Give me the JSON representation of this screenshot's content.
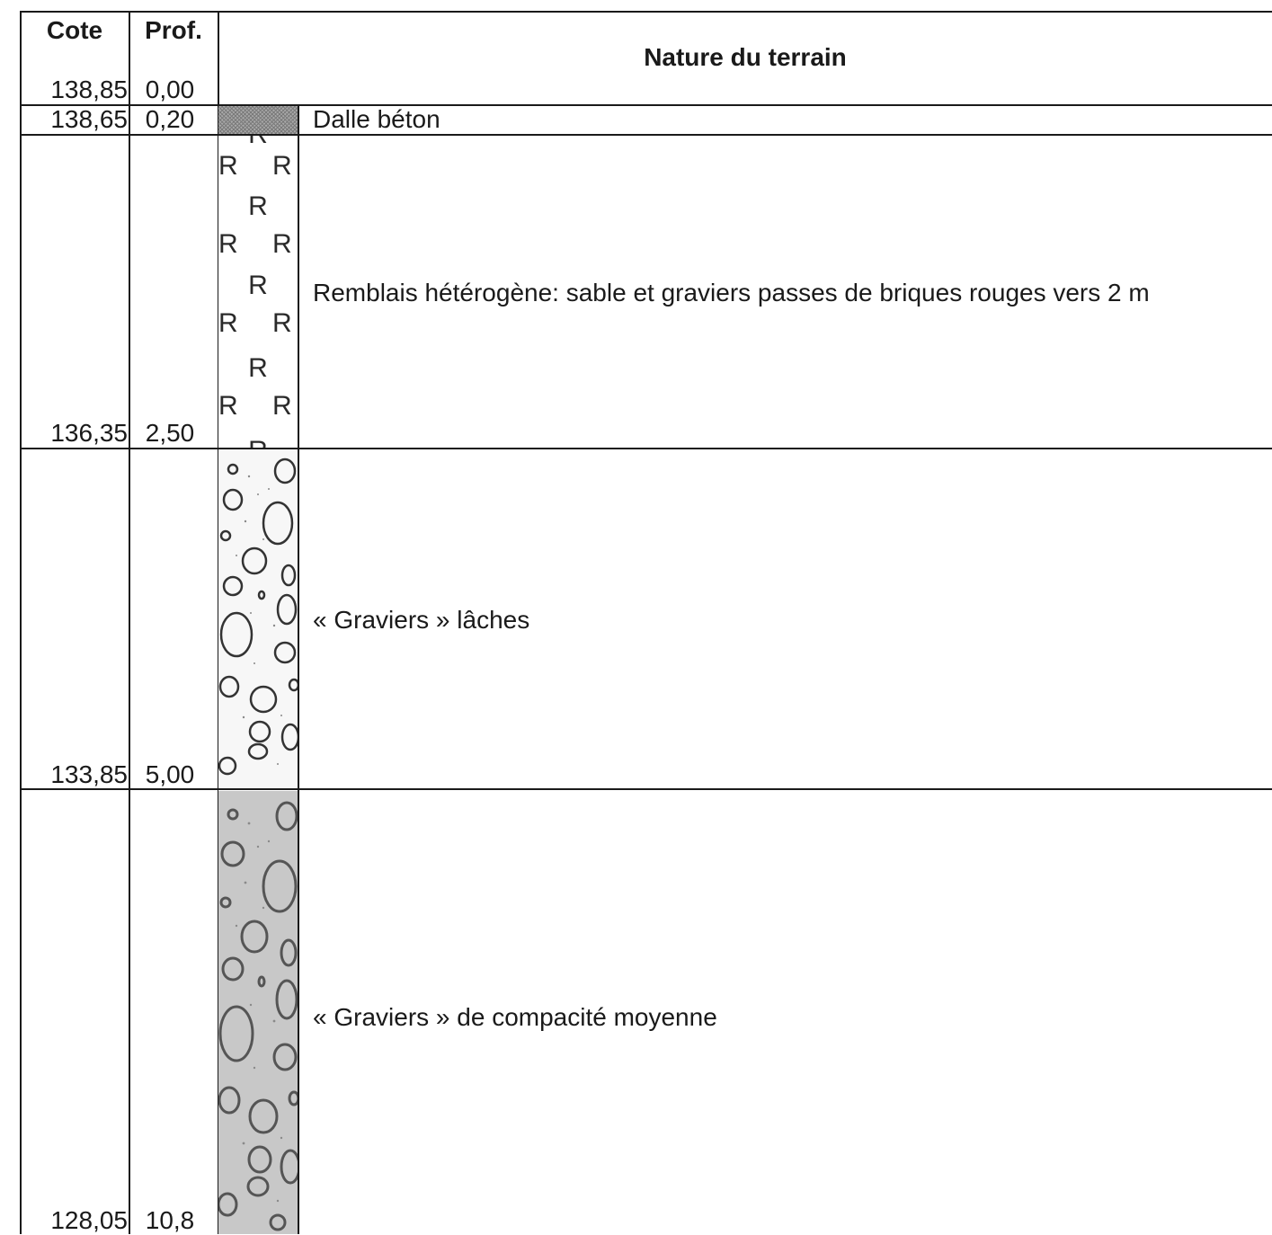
{
  "header": {
    "cote": "Cote",
    "prof": "Prof.",
    "nature": "Nature du terrain"
  },
  "top_row": {
    "cote": "138,85",
    "prof": "0,00"
  },
  "layers": [
    {
      "cote": "138,65",
      "prof": "0,20",
      "description": "Dalle béton",
      "pattern": "concrete-hatch"
    },
    {
      "cote": "136,35",
      "prof": "2,50",
      "description": "Remblais hétérogène: sable et graviers passes de briques rouges vers 2 m",
      "pattern": "fill-R-symbol",
      "symbol": "R"
    },
    {
      "cote": "133,85",
      "prof": "5,00",
      "description": "« Graviers » lâches",
      "pattern": "gravel-loose"
    },
    {
      "cote": "128,05",
      "prof": "10,8",
      "description": "« Graviers » de compacité moyenne",
      "pattern": "gravel-medium"
    }
  ],
  "colors": {
    "line": "#1a1a1a",
    "concrete": "#a9a9a9",
    "gravel_loose_bg": "#f7f7f7",
    "gravel_medium_bg": "#c8c8c8"
  }
}
